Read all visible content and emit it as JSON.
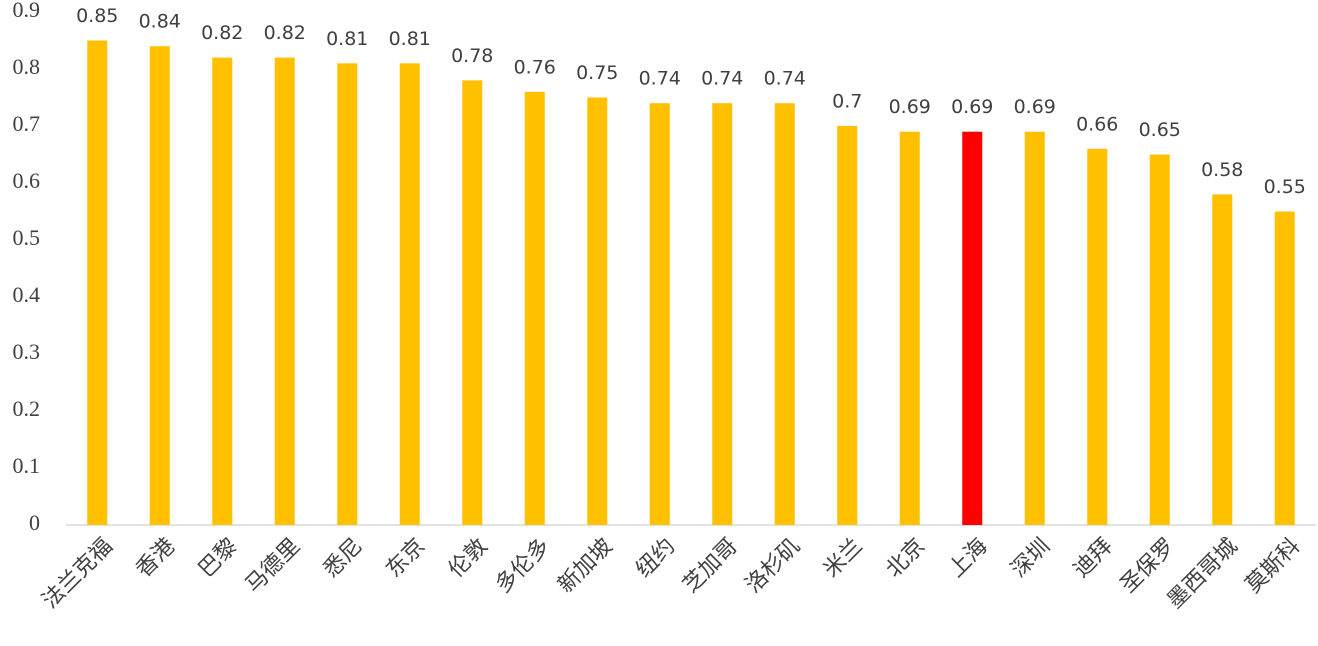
{
  "chart_data": {
    "type": "bar",
    "categories": [
      "法兰克福",
      "香港",
      "巴黎",
      "马德里",
      "悉尼",
      "东京",
      "伦敦",
      "多伦多",
      "新加坡",
      "纽约",
      "芝加哥",
      "洛杉矶",
      "米兰",
      "北京",
      "上海",
      "深圳",
      "迪拜",
      "圣保罗",
      "墨西哥城",
      "莫斯科"
    ],
    "values": [
      0.85,
      0.84,
      0.82,
      0.82,
      0.81,
      0.81,
      0.78,
      0.76,
      0.75,
      0.74,
      0.74,
      0.74,
      0.7,
      0.69,
      0.69,
      0.69,
      0.66,
      0.65,
      0.58,
      0.55
    ],
    "colors": [
      "#FFC000",
      "#FFC000",
      "#FFC000",
      "#FFC000",
      "#FFC000",
      "#FFC000",
      "#FFC000",
      "#FFC000",
      "#FFC000",
      "#FFC000",
      "#FFC000",
      "#FFC000",
      "#FFC000",
      "#FFC000",
      "#FF0000",
      "#FFC000",
      "#FFC000",
      "#FFC000",
      "#FFC000",
      "#FFC000"
    ],
    "ylim": [
      0,
      0.9
    ],
    "yticks": [
      0,
      0.1,
      0.2,
      0.3,
      0.4,
      0.5,
      0.6,
      0.7,
      0.8,
      0.9
    ],
    "grid": false
  }
}
